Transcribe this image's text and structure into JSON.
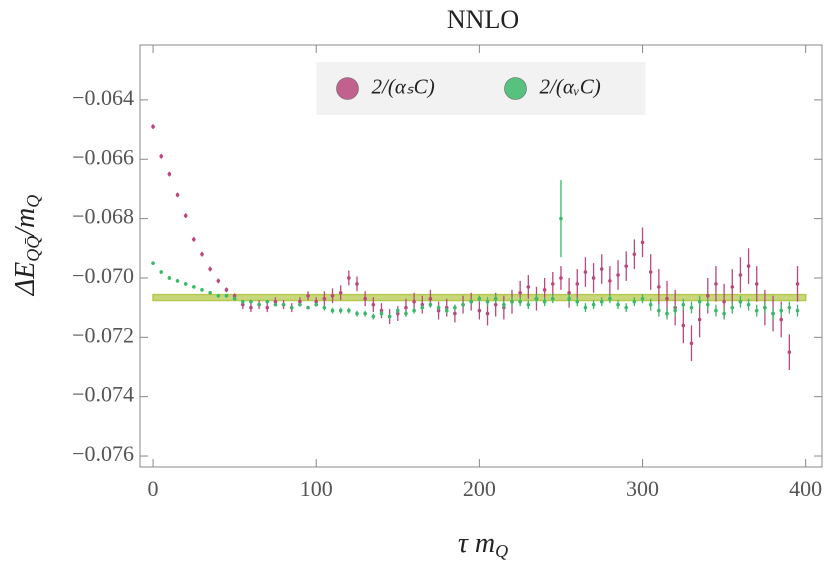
{
  "chart_data": {
    "type": "errorbar",
    "title": "NNLO",
    "xlabel": [
      "τ m",
      "Q"
    ],
    "ylabel": [
      "ΔE",
      "QQ̄",
      "/m",
      "Q"
    ],
    "xlim": [
      -8,
      410
    ],
    "ylim": [
      -0.07637,
      -0.06215
    ],
    "xticks": [
      0,
      100,
      200,
      300,
      400
    ],
    "yticks": [
      {
        "value": -0.064,
        "label": "−0.064"
      },
      {
        "value": -0.066,
        "label": "−0.066"
      },
      {
        "value": -0.068,
        "label": "−0.068"
      },
      {
        "value": -0.07,
        "label": "−0.070"
      },
      {
        "value": -0.072,
        "label": "−0.072"
      },
      {
        "value": -0.074,
        "label": "−0.074"
      },
      {
        "value": -0.076,
        "label": "−0.076"
      }
    ],
    "legend": "top center",
    "fit": {
      "value": -0.07066,
      "error": 0.0001,
      "x_range": [
        0,
        400
      ],
      "color": "#b5c94f"
    },
    "x": [
      0,
      5,
      10,
      15,
      20,
      25,
      30,
      35,
      40,
      45,
      50,
      55,
      60,
      65,
      70,
      75,
      80,
      85,
      90,
      95,
      100,
      105,
      110,
      115,
      120,
      125,
      130,
      135,
      140,
      145,
      150,
      155,
      160,
      165,
      170,
      175,
      180,
      185,
      190,
      195,
      200,
      205,
      210,
      215,
      220,
      225,
      230,
      235,
      240,
      245,
      250,
      255,
      260,
      265,
      270,
      275,
      280,
      285,
      290,
      295,
      300,
      305,
      310,
      315,
      320,
      325,
      330,
      335,
      340,
      345,
      350,
      355,
      360,
      365,
      370,
      375,
      380,
      385,
      390,
      395
    ],
    "series": [
      {
        "name": "2/(αₛC)",
        "color": "#b8487d",
        "values": [
          -0.0649,
          -0.0659,
          -0.0665,
          -0.0672,
          -0.0679,
          -0.0687,
          -0.0692,
          -0.0697,
          -0.0701,
          -0.0704,
          -0.0706,
          -0.0709,
          -0.071,
          -0.0709,
          -0.071,
          -0.0708,
          -0.0709,
          -0.071,
          -0.0708,
          -0.0706,
          -0.0708,
          -0.0707,
          -0.0706,
          -0.0705,
          -0.07,
          -0.0702,
          -0.0707,
          -0.0709,
          -0.0711,
          -0.0713,
          -0.0712,
          -0.071,
          -0.0708,
          -0.0709,
          -0.0707,
          -0.0711,
          -0.071,
          -0.0712,
          -0.0709,
          -0.0708,
          -0.0711,
          -0.0712,
          -0.0709,
          -0.071,
          -0.0708,
          -0.0705,
          -0.0703,
          -0.0707,
          -0.0704,
          -0.0702,
          -0.07,
          -0.0705,
          -0.0702,
          -0.0698,
          -0.07,
          -0.0697,
          -0.0701,
          -0.0699,
          -0.0696,
          -0.0692,
          -0.0688,
          -0.0698,
          -0.0703,
          -0.0707,
          -0.071,
          -0.0716,
          -0.0722,
          -0.0714,
          -0.0706,
          -0.0702,
          -0.0708,
          -0.0703,
          -0.0699,
          -0.0696,
          -0.0702,
          -0.071,
          -0.0712,
          -0.0714,
          -0.0725,
          -0.0702
        ],
        "errors": [
          8e-05,
          8e-05,
          8e-05,
          8e-05,
          8e-05,
          8e-05,
          8e-05,
          8e-05,
          8e-05,
          8e-05,
          8e-05,
          0.00015,
          0.00015,
          0.00015,
          0.00015,
          0.00015,
          0.00015,
          0.00015,
          0.00015,
          0.00015,
          0.00015,
          0.00025,
          0.00025,
          0.00025,
          0.00025,
          0.00025,
          0.00025,
          0.00025,
          0.00025,
          0.00025,
          0.00025,
          0.0003,
          0.0003,
          0.0003,
          0.0003,
          0.0003,
          0.0003,
          0.0003,
          0.0003,
          0.0003,
          0.0003,
          0.0004,
          0.0004,
          0.0004,
          0.0004,
          0.0004,
          0.0004,
          0.0004,
          0.0004,
          0.0004,
          0.0004,
          0.0005,
          0.0005,
          0.0005,
          0.0005,
          0.0005,
          0.0005,
          0.0005,
          0.0005,
          0.0005,
          0.0005,
          0.0006,
          0.0006,
          0.0006,
          0.0006,
          0.0006,
          0.0006,
          0.0006,
          0.0006,
          0.0006,
          0.0006,
          0.0006,
          0.0006,
          0.0006,
          0.0006,
          0.0006,
          0.0006,
          0.0006,
          0.0006,
          0.0006
        ]
      },
      {
        "name": "2/(αᵥC)",
        "color": "#3db86a",
        "values": [
          -0.0695,
          -0.0698,
          -0.07,
          -0.0701,
          -0.0702,
          -0.0703,
          -0.0704,
          -0.0705,
          -0.0706,
          -0.0706,
          -0.0707,
          -0.0708,
          -0.0708,
          -0.0709,
          -0.0708,
          -0.0709,
          -0.0709,
          -0.071,
          -0.0709,
          -0.071,
          -0.0709,
          -0.071,
          -0.0711,
          -0.0711,
          -0.0711,
          -0.0712,
          -0.0712,
          -0.0713,
          -0.0712,
          -0.0713,
          -0.0711,
          -0.0712,
          -0.0711,
          -0.071,
          -0.0709,
          -0.071,
          -0.0711,
          -0.071,
          -0.0709,
          -0.0708,
          -0.0707,
          -0.0708,
          -0.0707,
          -0.0709,
          -0.0708,
          -0.0708,
          -0.0709,
          -0.0707,
          -0.0708,
          -0.0707,
          -0.068,
          -0.0707,
          -0.0708,
          -0.071,
          -0.0709,
          -0.0708,
          -0.0707,
          -0.0709,
          -0.071,
          -0.0708,
          -0.0707,
          -0.0709,
          -0.0711,
          -0.0712,
          -0.0711,
          -0.0709,
          -0.071,
          -0.0708,
          -0.0709,
          -0.0711,
          -0.0712,
          -0.071,
          -0.0708,
          -0.0709,
          -0.0711,
          -0.071,
          -0.0712,
          -0.0711,
          -0.071,
          -0.0711
        ],
        "errors": [
          6e-05,
          6e-05,
          6e-05,
          6e-05,
          6e-05,
          6e-05,
          6e-05,
          6e-05,
          6e-05,
          6e-05,
          6e-05,
          6e-05,
          6e-05,
          6e-05,
          6e-05,
          6e-05,
          6e-05,
          6e-05,
          6e-05,
          6e-05,
          6e-05,
          0.0001,
          0.0001,
          0.0001,
          0.0001,
          0.0001,
          0.0001,
          0.0001,
          0.0001,
          0.0001,
          0.0001,
          0.0001,
          0.0001,
          0.0001,
          0.0001,
          0.0001,
          0.0001,
          0.0001,
          0.0001,
          0.0001,
          0.0001,
          0.00015,
          0.00015,
          0.00015,
          0.00015,
          0.00015,
          0.00015,
          0.00015,
          0.00015,
          0.00015,
          0.0013,
          0.00015,
          0.00015,
          0.00015,
          0.00015,
          0.00015,
          0.00015,
          0.00015,
          0.00015,
          0.00015,
          0.00015,
          0.0002,
          0.0002,
          0.0002,
          0.0002,
          0.0002,
          0.0002,
          0.0002,
          0.0002,
          0.0002,
          0.0002,
          0.0002,
          0.0002,
          0.0002,
          0.0002,
          0.0002,
          0.0002,
          0.0002,
          0.0002,
          0.0002
        ]
      }
    ]
  }
}
